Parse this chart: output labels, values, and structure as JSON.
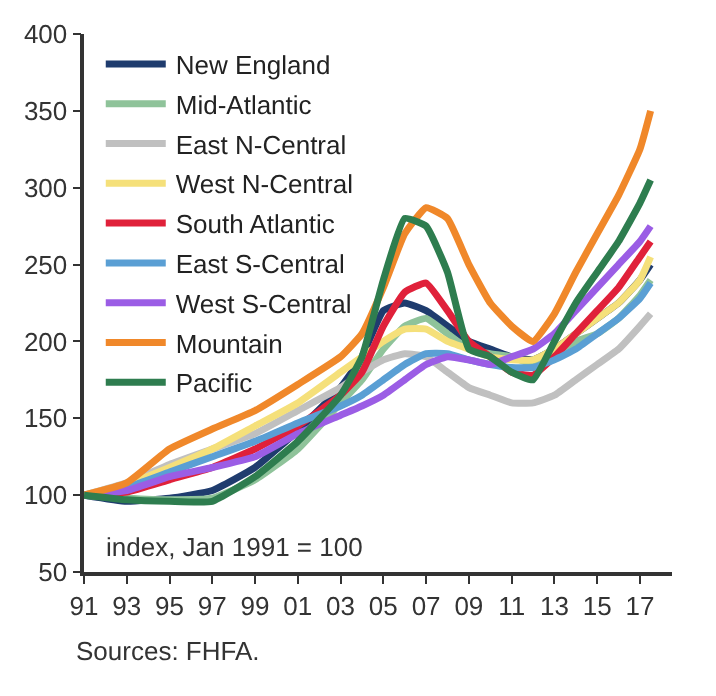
{
  "chart_data": {
    "type": "line",
    "x": [
      1991,
      1993,
      1995,
      1997,
      1999,
      2001,
      2003,
      2004,
      2005,
      2006,
      2007,
      2008,
      2009,
      2010,
      2011,
      2012,
      2013,
      2014,
      2015,
      2016,
      2017,
      2017.5
    ],
    "series": [
      {
        "name": "New England",
        "color": "#1f3c6e",
        "values": [
          100,
          96,
          98,
          103,
          118,
          142,
          170,
          190,
          220,
          225,
          220,
          210,
          200,
          195,
          190,
          188,
          195,
          205,
          215,
          225,
          240,
          250
        ]
      },
      {
        "name": "Mid-Atlantic",
        "color": "#8fc39a",
        "values": [
          100,
          98,
          97,
          98,
          110,
          130,
          160,
          175,
          195,
          210,
          215,
          205,
          195,
          192,
          190,
          185,
          190,
          200,
          205,
          215,
          230,
          240
        ]
      },
      {
        "name": "East N-Central",
        "color": "#c0c0c0",
        "values": [
          100,
          108,
          120,
          130,
          140,
          155,
          170,
          180,
          188,
          192,
          190,
          180,
          170,
          165,
          160,
          160,
          165,
          175,
          185,
          195,
          210,
          218
        ]
      },
      {
        "name": "West N-Central",
        "color": "#f5e07a",
        "values": [
          100,
          107,
          118,
          130,
          145,
          160,
          180,
          190,
          200,
          208,
          208,
          200,
          195,
          190,
          188,
          188,
          195,
          205,
          215,
          225,
          240,
          255
        ]
      },
      {
        "name": "South Atlantic",
        "color": "#e0213a",
        "values": [
          100,
          102,
          110,
          118,
          130,
          145,
          165,
          180,
          210,
          232,
          238,
          220,
          200,
          190,
          180,
          178,
          190,
          205,
          220,
          235,
          255,
          265
        ]
      },
      {
        "name": "East S-Central",
        "color": "#5a9fd4",
        "values": [
          100,
          105,
          115,
          125,
          135,
          147,
          158,
          165,
          175,
          185,
          192,
          192,
          188,
          185,
          183,
          183,
          188,
          195,
          205,
          215,
          228,
          238
        ]
      },
      {
        "name": "West S-Central",
        "color": "#9b5de5",
        "values": [
          100,
          103,
          112,
          118,
          125,
          140,
          152,
          158,
          165,
          175,
          185,
          190,
          188,
          185,
          190,
          195,
          205,
          220,
          235,
          250,
          265,
          275
        ]
      },
      {
        "name": "Mountain",
        "color": "#f0882a",
        "values": [
          100,
          108,
          130,
          143,
          155,
          172,
          190,
          205,
          235,
          270,
          287,
          280,
          250,
          225,
          210,
          200,
          218,
          245,
          270,
          295,
          325,
          350
        ]
      },
      {
        "name": "Pacific",
        "color": "#2e7d4f",
        "values": [
          100,
          97,
          96,
          96,
          112,
          135,
          165,
          190,
          240,
          280,
          275,
          245,
          195,
          190,
          180,
          175,
          200,
          225,
          245,
          265,
          290,
          305
        ]
      }
    ],
    "xlim": [
      1991,
      2018.5
    ],
    "xticks": [
      {
        "value": 1991,
        "label": "91"
      },
      {
        "value": 1993,
        "label": "93"
      },
      {
        "value": 1995,
        "label": "95"
      },
      {
        "value": 1997,
        "label": "97"
      },
      {
        "value": 1999,
        "label": "99"
      },
      {
        "value": 2001,
        "label": "01"
      },
      {
        "value": 2003,
        "label": "03"
      },
      {
        "value": 2005,
        "label": "05"
      },
      {
        "value": 2007,
        "label": "07"
      },
      {
        "value": 2009,
        "label": "09"
      },
      {
        "value": 2011,
        "label": "11"
      },
      {
        "value": 2013,
        "label": "13"
      },
      {
        "value": 2015,
        "label": "15"
      },
      {
        "value": 2017,
        "label": "17"
      }
    ],
    "ylim": [
      50,
      400
    ],
    "yticks": [
      50,
      100,
      150,
      200,
      250,
      300,
      350,
      400
    ],
    "legend": "top left",
    "marker": "none",
    "line_style": "solid",
    "annotations": [
      "index, Jan 1991 = 100",
      "Sources: FHFA."
    ]
  }
}
